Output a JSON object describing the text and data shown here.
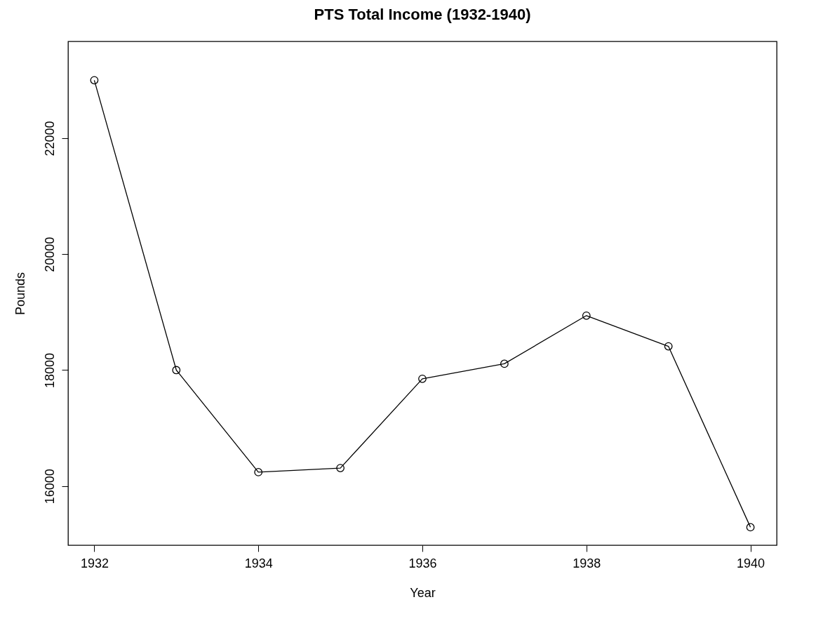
{
  "chart_data": {
    "type": "line",
    "title": "PTS Total Income (1932-1940)",
    "xlabel": "Year",
    "ylabel": "Pounds",
    "x": [
      1932,
      1933,
      1934,
      1935,
      1936,
      1937,
      1938,
      1939,
      1940
    ],
    "series": [
      {
        "color": "#000000",
        "values": [
          23000,
          18000,
          16240,
          16310,
          17850,
          18110,
          18940,
          18410,
          15290
        ]
      }
    ],
    "xlim": [
      1931.68,
      1940.32
    ],
    "ylim": [
      14980,
      23670
    ],
    "xticks": [
      1932,
      1934,
      1936,
      1938,
      1940
    ],
    "yticks": [
      16000,
      18000,
      20000,
      22000
    ],
    "marker": "circle",
    "line_style": "solid",
    "grid": false,
    "legend": false
  }
}
